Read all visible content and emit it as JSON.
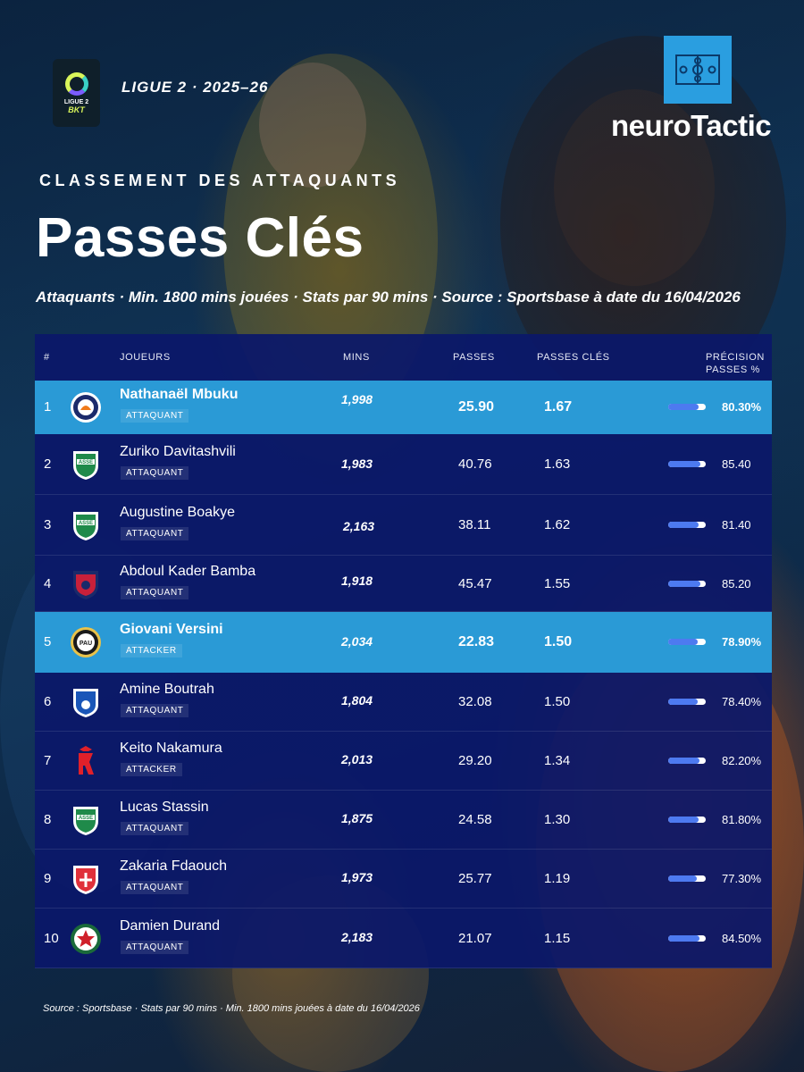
{
  "header": {
    "league_logo_top": "LIGUE 2",
    "league_logo_bottom": "BKT",
    "season": "LIGUE 2 · 2025–26",
    "brand": "neuroTactic"
  },
  "subtitle": "CLASSEMENT DES ATTAQUANTS",
  "title": "Passes Clés",
  "description": "Attaquants · Min. 1800 mins jouées · Stats par 90 mins · Source : Sportsbase à date du 16/04/2026",
  "table": {
    "columns": {
      "rank": "#",
      "player": "JOUEURS",
      "mins": "MINS",
      "passes": "PASSES",
      "key_passes": "PASSES CLÉS",
      "accuracy_line1": "PRÉCISION",
      "accuracy_line2": "PASSES %"
    },
    "rows": [
      {
        "rank": "1",
        "name": "Nathanaël Mbuku",
        "position": "ATTAQUANT",
        "mins": "1,998",
        "passes": "25.90",
        "key_passes": "1.67",
        "accuracy": "80.30%",
        "accuracy_value": 80.3,
        "highlight": true,
        "club_crest": "montpellier-crest"
      },
      {
        "rank": "2",
        "name": "Zuriko Davitashvili",
        "position": "ATTAQUANT",
        "mins": "1,983",
        "passes": "40.76",
        "key_passes": "1.63",
        "accuracy": "85.40",
        "accuracy_value": 85.4,
        "highlight": false,
        "club_crest": "saint-etienne-crest"
      },
      {
        "rank": "3",
        "name": "Augustine Boakye",
        "position": "ATTAQUANT",
        "mins": "2,163",
        "passes": "38.11",
        "key_passes": "1.62",
        "accuracy": "81.40",
        "accuracy_value": 81.4,
        "highlight": false,
        "club_crest": "saint-etienne-crest"
      },
      {
        "rank": "4",
        "name": "Abdoul Kader Bamba",
        "position": "ATTAQUANT",
        "mins": "1,918",
        "passes": "45.47",
        "key_passes": "1.55",
        "accuracy": "85.20",
        "accuracy_value": 85.2,
        "highlight": false,
        "club_crest": "clermont-crest"
      },
      {
        "rank": "5",
        "name": "Giovani Versini",
        "position": "ATTACKER",
        "mins": "2,034",
        "passes": "22.83",
        "key_passes": "1.50",
        "accuracy": "78.90%",
        "accuracy_value": 78.9,
        "highlight": true,
        "club_crest": "pau-crest"
      },
      {
        "rank": "6",
        "name": "Amine Boutrah",
        "position": "ATTAQUANT",
        "mins": "1,804",
        "passes": "32.08",
        "key_passes": "1.50",
        "accuracy": "78.40%",
        "accuracy_value": 78.4,
        "highlight": false,
        "club_crest": "bastia-crest"
      },
      {
        "rank": "7",
        "name": "Keito Nakamura",
        "position": "ATTACKER",
        "mins": "2,013",
        "passes": "29.20",
        "key_passes": "1.34",
        "accuracy": "82.20%",
        "accuracy_value": 82.2,
        "highlight": false,
        "club_crest": "reims-crest"
      },
      {
        "rank": "8",
        "name": "Lucas Stassin",
        "position": "ATTAQUANT",
        "mins": "1,875",
        "passes": "24.58",
        "key_passes": "1.30",
        "accuracy": "81.80%",
        "accuracy_value": 81.8,
        "highlight": false,
        "club_crest": "saint-etienne-crest"
      },
      {
        "rank": "9",
        "name": "Zakaria Fdaouch",
        "position": "ATTAQUANT",
        "mins": "1,973",
        "passes": "25.77",
        "key_passes": "1.19",
        "accuracy": "77.30%",
        "accuracy_value": 77.3,
        "highlight": false,
        "club_crest": "nancy-crest"
      },
      {
        "rank": "10",
        "name": "Damien Durand",
        "position": "ATTAQUANT",
        "mins": "2,183",
        "passes": "21.07",
        "key_passes": "1.15",
        "accuracy": "84.50%",
        "accuracy_value": 84.5,
        "highlight": false,
        "club_crest": "red-star-crest"
      }
    ]
  },
  "footer": "Source : Sportsbase · Stats par 90 mins · Min. 1800 mins jouées à date du 16/04/2026",
  "colors": {
    "table_bg": "#0b1869",
    "highlight_row": "#2a9ad6",
    "brand_blue": "#2a9ee0",
    "bar_fill": "#4d7af0",
    "ligue2_yellow": "#d9f55a"
  }
}
